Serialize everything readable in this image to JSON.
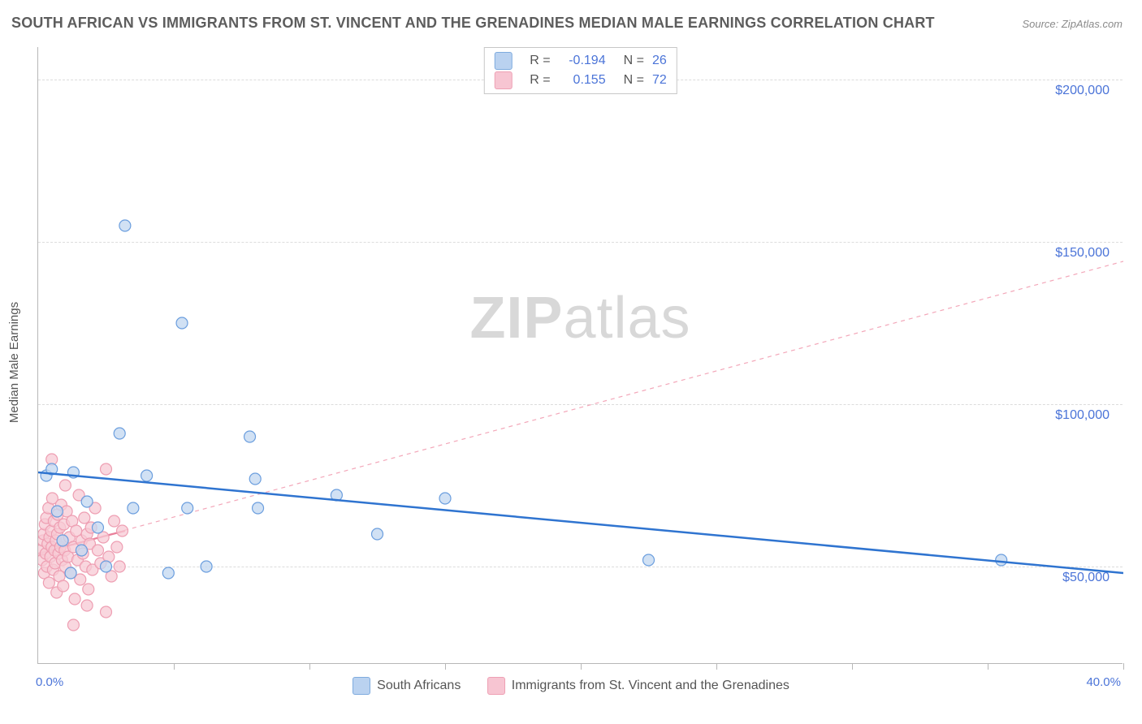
{
  "title": "SOUTH AFRICAN VS IMMIGRANTS FROM ST. VINCENT AND THE GRENADINES MEDIAN MALE EARNINGS CORRELATION CHART",
  "source_label": "Source: ZipAtlas.com",
  "ylabel": "Median Male Earnings",
  "watermark_bold": "ZIP",
  "watermark_rest": "atlas",
  "chart": {
    "type": "scatter",
    "xlim": [
      0,
      40
    ],
    "ylim": [
      20000,
      210000
    ],
    "x_min_label": "0.0%",
    "x_max_label": "40.0%",
    "y_ticks": [
      50000,
      100000,
      150000,
      200000
    ],
    "y_tick_labels": [
      "$50,000",
      "$100,000",
      "$150,000",
      "$200,000"
    ],
    "x_tick_positions": [
      5,
      10,
      15,
      20,
      25,
      30,
      35,
      40
    ],
    "background_color": "#ffffff",
    "grid_color": "#dcdcdc",
    "axis_color": "#b7b7b7",
    "tick_label_color": "#4b74d8",
    "marker_radius": 7
  },
  "series": {
    "blue": {
      "label": "South Africans",
      "fill": "#c2d7f0",
      "stroke": "#6b9ede",
      "swatch_fill": "#bad2f0",
      "swatch_border": "#7eabde",
      "R_label": "R =",
      "R_value": "-0.194",
      "N_label": "N =",
      "N_value": "26",
      "trend": {
        "x1": 0,
        "y1": 79000,
        "x2": 40,
        "y2": 48000,
        "color": "#2f74d0",
        "width": 2.5,
        "dash": "none"
      },
      "points": [
        [
          0.3,
          78000
        ],
        [
          0.5,
          80000
        ],
        [
          0.7,
          67000
        ],
        [
          0.9,
          58000
        ],
        [
          1.2,
          48000
        ],
        [
          1.3,
          79000
        ],
        [
          1.6,
          55000
        ],
        [
          1.8,
          70000
        ],
        [
          2.2,
          62000
        ],
        [
          2.5,
          50000
        ],
        [
          3.0,
          91000
        ],
        [
          3.2,
          155000
        ],
        [
          3.5,
          68000
        ],
        [
          4.0,
          78000
        ],
        [
          4.8,
          48000
        ],
        [
          5.3,
          125000
        ],
        [
          5.5,
          68000
        ],
        [
          6.2,
          50000
        ],
        [
          7.8,
          90000
        ],
        [
          8.0,
          77000
        ],
        [
          8.1,
          68000
        ],
        [
          11.0,
          72000
        ],
        [
          12.5,
          60000
        ],
        [
          15.0,
          71000
        ],
        [
          22.5,
          52000
        ],
        [
          35.5,
          52000
        ]
      ]
    },
    "pink": {
      "label": "Immigrants from St. Vincent and the Grenadines",
      "fill": "#f7c9d4",
      "stroke": "#ee9eb2",
      "swatch_fill": "#f7c5d2",
      "swatch_border": "#eea0b4",
      "R_label": "R =",
      "R_value": "0.155",
      "N_label": "N =",
      "N_value": "72",
      "trend": {
        "x1": 0,
        "y1": 54000,
        "x2": 40,
        "y2": 144000,
        "color": "#f3a7b9",
        "width": 1.2,
        "dash": "5,5"
      },
      "trend_solid": {
        "x1": 0,
        "y1": 54000,
        "x2": 3.2,
        "y2": 61000,
        "color": "#e97f9a",
        "width": 2.2
      },
      "points": [
        [
          0.1,
          55000
        ],
        [
          0.15,
          52000
        ],
        [
          0.18,
          58000
        ],
        [
          0.2,
          60000
        ],
        [
          0.22,
          48000
        ],
        [
          0.25,
          63000
        ],
        [
          0.28,
          54000
        ],
        [
          0.3,
          65000
        ],
        [
          0.32,
          50000
        ],
        [
          0.35,
          57000
        ],
        [
          0.38,
          68000
        ],
        [
          0.4,
          45000
        ],
        [
          0.42,
          59000
        ],
        [
          0.45,
          53000
        ],
        [
          0.48,
          61000
        ],
        [
          0.5,
          56000
        ],
        [
          0.52,
          71000
        ],
        [
          0.55,
          49000
        ],
        [
          0.58,
          64000
        ],
        [
          0.6,
          55000
        ],
        [
          0.62,
          51000
        ],
        [
          0.65,
          58000
        ],
        [
          0.68,
          42000
        ],
        [
          0.7,
          60000
        ],
        [
          0.72,
          66000
        ],
        [
          0.75,
          54000
        ],
        [
          0.78,
          47000
        ],
        [
          0.8,
          62000
        ],
        [
          0.82,
          56000
        ],
        [
          0.85,
          69000
        ],
        [
          0.88,
          52000
        ],
        [
          0.9,
          58000
        ],
        [
          0.92,
          44000
        ],
        [
          0.95,
          63000
        ],
        [
          0.98,
          55000
        ],
        [
          1.0,
          50000
        ],
        [
          1.05,
          67000
        ],
        [
          1.1,
          53000
        ],
        [
          1.15,
          59000
        ],
        [
          1.2,
          48000
        ],
        [
          1.25,
          64000
        ],
        [
          1.3,
          56000
        ],
        [
          1.35,
          40000
        ],
        [
          1.4,
          61000
        ],
        [
          1.45,
          52000
        ],
        [
          1.5,
          72000
        ],
        [
          1.55,
          46000
        ],
        [
          1.6,
          58000
        ],
        [
          1.65,
          54000
        ],
        [
          1.7,
          65000
        ],
        [
          1.75,
          50000
        ],
        [
          1.8,
          60000
        ],
        [
          1.85,
          43000
        ],
        [
          1.9,
          57000
        ],
        [
          1.95,
          62000
        ],
        [
          2.0,
          49000
        ],
        [
          2.1,
          68000
        ],
        [
          2.2,
          55000
        ],
        [
          2.3,
          51000
        ],
        [
          2.4,
          59000
        ],
        [
          2.5,
          80000
        ],
        [
          2.5,
          36000
        ],
        [
          2.6,
          53000
        ],
        [
          2.7,
          47000
        ],
        [
          2.8,
          64000
        ],
        [
          2.9,
          56000
        ],
        [
          3.0,
          50000
        ],
        [
          3.1,
          61000
        ],
        [
          0.5,
          83000
        ],
        [
          1.0,
          75000
        ],
        [
          1.8,
          38000
        ],
        [
          1.3,
          32000
        ]
      ]
    }
  }
}
